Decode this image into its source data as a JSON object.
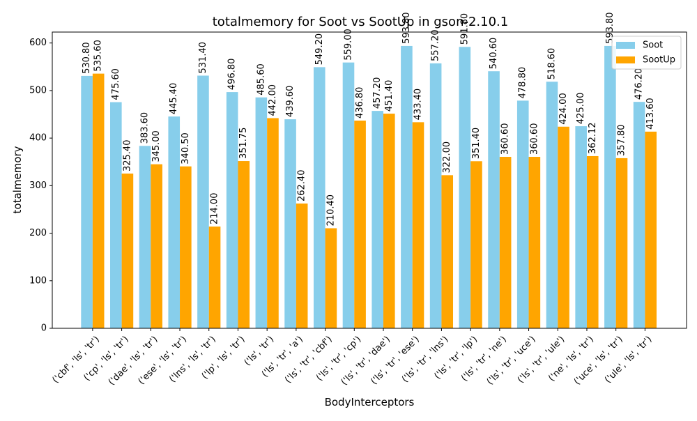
{
  "chart_data": {
    "type": "bar",
    "title": "totalmemory for Soot vs SootUp in gson-2.10.1",
    "xlabel": "BodyInterceptors",
    "ylabel": "totalmemory",
    "ylim": [
      0,
      623
    ],
    "yticks": [
      0,
      100,
      200,
      300,
      400,
      500,
      600
    ],
    "grid": false,
    "legend_position": "top-right",
    "categories": [
      "('cbf', 'ls', 'tr')",
      "('cp', 'ls', 'tr')",
      "('dae', 'ls', 'tr')",
      "('ese', 'ls', 'tr')",
      "('lns', 'ls', 'tr')",
      "('lp', 'ls', 'tr')",
      "('ls', 'tr')",
      "('ls', 'tr', 'a')",
      "('ls', 'tr', 'cbf')",
      "('ls', 'tr', 'cp')",
      "('ls', 'tr', 'dae')",
      "('ls', 'tr', 'ese')",
      "('ls', 'tr', 'lns')",
      "('ls', 'tr', 'lp')",
      "('ls', 'tr', 'ne')",
      "('ls', 'tr', 'uce')",
      "('ls', 'tr', 'ule')",
      "('ne', 'ls', 'tr')",
      "('uce', 'ls', 'tr')",
      "('ule', 'ls', 'tr')"
    ],
    "series": [
      {
        "name": "Soot",
        "color": "#87CEEB",
        "values": [
          530.8,
          475.6,
          383.6,
          445.4,
          531.4,
          496.8,
          485.6,
          439.6,
          549.2,
          559.0,
          457.2,
          593.8,
          557.2,
          591.8,
          540.6,
          478.8,
          518.6,
          425.0,
          593.8,
          476.2
        ],
        "labels": [
          "530.80",
          "475.60",
          "383.60",
          "445.40",
          "531.40",
          "496.80",
          "485.60",
          "439.60",
          "549.20",
          "559.00",
          "457.20",
          "593.80",
          "557.20",
          "591.80",
          "540.60",
          "478.80",
          "518.60",
          "425.00",
          "593.80",
          "476.20"
        ]
      },
      {
        "name": "SootUp",
        "color": "#FFA500",
        "values": [
          535.6,
          325.4,
          345.0,
          340.5,
          214.0,
          351.75,
          442.0,
          262.4,
          210.4,
          436.8,
          451.4,
          433.4,
          322.0,
          351.4,
          360.6,
          360.6,
          424.0,
          362.12,
          357.8,
          413.6
        ],
        "labels": [
          "535.60",
          "325.40",
          "345.00",
          "340.50",
          "214.00",
          "351.75",
          "442.00",
          "262.40",
          "210.40",
          "436.80",
          "451.40",
          "433.40",
          "322.00",
          "351.40",
          "360.60",
          "360.60",
          "424.00",
          "362.12",
          "357.80",
          "413.60"
        ]
      }
    ]
  }
}
